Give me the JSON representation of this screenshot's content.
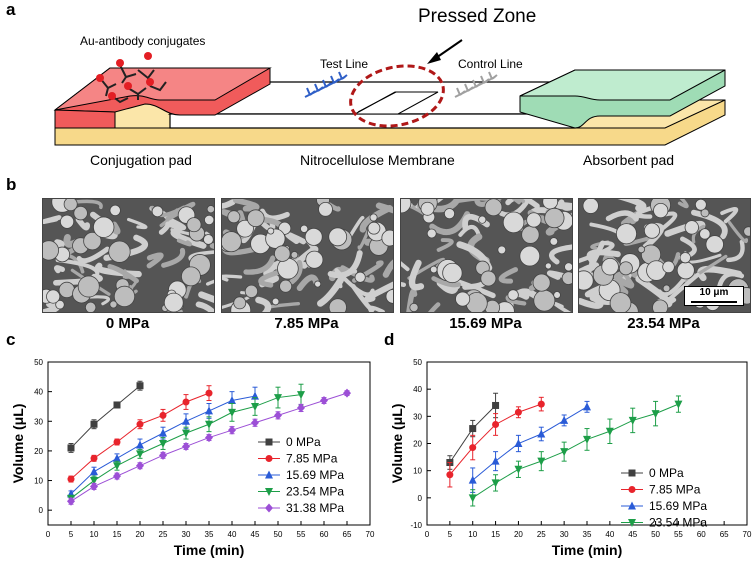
{
  "panels": {
    "a": "a",
    "b": "b",
    "c": "c",
    "d": "d"
  },
  "schematic": {
    "pressed_zone": "Pressed Zone",
    "au_antibody": "Au-antibody conjugates",
    "test_line": "Test Line",
    "control_line": "Control Line",
    "conjugation_pad": "Conjugation pad",
    "nitrocellulose": "Nitrocellulose Membrane",
    "absorbent_pad": "Absorbent pad",
    "colors": {
      "conjugation": "#f26b6b",
      "absorbent": "#a8e3bf",
      "base": "#f7d98a",
      "pressed": "#b01818",
      "test": "#2f5fc7",
      "control": "#a0a0a0"
    }
  },
  "sem": {
    "labels": [
      "0 MPa",
      "7.85 MPa",
      "15.69 MPa",
      "23.54 MPa"
    ],
    "scale_bar": "10 μm"
  },
  "chart_data": [
    {
      "type": "line",
      "panel": "c",
      "xlabel": "Time (min)",
      "ylabel": "Volume (μL)",
      "xlim": [
        0,
        70
      ],
      "ylim": [
        -5,
        50
      ],
      "xticks": [
        0,
        5,
        10,
        15,
        20,
        25,
        30,
        35,
        40,
        45,
        50,
        55,
        60,
        65,
        70
      ],
      "yticks": [
        0,
        10,
        20,
        30,
        40,
        50
      ],
      "legend_position": "bottom-right",
      "series": [
        {
          "name": "0 MPa",
          "color": "#404040",
          "marker": "square",
          "x": [
            5,
            10,
            15,
            20
          ],
          "y": [
            21,
            29,
            35.5,
            42
          ],
          "err": [
            1.5,
            1.5,
            1,
            1.5
          ]
        },
        {
          "name": "7.85 MPa",
          "color": "#e8242c",
          "marker": "circle",
          "x": [
            5,
            10,
            15,
            20,
            25,
            30,
            35
          ],
          "y": [
            10.5,
            17.5,
            23,
            29,
            32,
            36.5,
            39.5
          ],
          "err": [
            1,
            1,
            1,
            1.5,
            2,
            2.5,
            2.5
          ]
        },
        {
          "name": "15.69 MPa",
          "color": "#2a5bd7",
          "marker": "triangle-up",
          "x": [
            5,
            10,
            15,
            20,
            25,
            30,
            35,
            40,
            45
          ],
          "y": [
            5.5,
            13,
            17.5,
            22,
            26,
            30,
            33.5,
            37,
            38.5
          ],
          "err": [
            1,
            1.5,
            1.5,
            2,
            2,
            2.5,
            2.5,
            3,
            3
          ]
        },
        {
          "name": "23.54 MPa",
          "color": "#1d9e48",
          "marker": "triangle-down",
          "x": [
            5,
            10,
            15,
            20,
            25,
            30,
            35,
            40,
            45,
            50,
            55
          ],
          "y": [
            4,
            10,
            15,
            19,
            22.5,
            26,
            29,
            33,
            35,
            38,
            39
          ],
          "err": [
            1,
            1.5,
            1.5,
            1.5,
            2,
            2,
            2.5,
            3,
            3,
            3.5,
            3.5
          ]
        },
        {
          "name": "31.38 MPa",
          "color": "#9c4fd6",
          "marker": "diamond",
          "x": [
            5,
            10,
            15,
            20,
            25,
            30,
            35,
            40,
            45,
            50,
            55,
            60,
            65
          ],
          "y": [
            3,
            8,
            11.5,
            15,
            18.5,
            21.5,
            24.5,
            27,
            29.5,
            32,
            34.5,
            37,
            39.5
          ],
          "err": [
            1,
            1,
            1,
            1,
            1,
            1,
            1,
            1.2,
            1.2,
            1.2,
            1.2,
            1,
            0.8
          ]
        }
      ]
    },
    {
      "type": "line",
      "panel": "d",
      "xlabel": "Time (min)",
      "ylabel": "Volume (μL)",
      "xlim": [
        0,
        70
      ],
      "ylim": [
        -10,
        50
      ],
      "xticks": [
        0,
        5,
        10,
        15,
        20,
        25,
        30,
        35,
        40,
        45,
        50,
        55,
        60,
        65,
        70
      ],
      "yticks": [
        -10,
        0,
        10,
        20,
        30,
        40,
        50
      ],
      "legend_position": "bottom-right",
      "series": [
        {
          "name": "0 MPa",
          "color": "#404040",
          "marker": "square",
          "x": [
            5,
            10,
            15
          ],
          "y": [
            13,
            25.5,
            34
          ],
          "err": [
            2.5,
            3,
            4.5
          ]
        },
        {
          "name": "7.85 MPa",
          "color": "#e8242c",
          "marker": "circle",
          "x": [
            5,
            10,
            15,
            20,
            25
          ],
          "y": [
            8.5,
            18.5,
            27,
            31.5,
            34.5
          ],
          "err": [
            4.5,
            4.5,
            4,
            2,
            2.5
          ]
        },
        {
          "name": "15.69 MPa",
          "color": "#2a5bd7",
          "marker": "triangle-up",
          "x": [
            10,
            15,
            20,
            25,
            30,
            35
          ],
          "y": [
            6.5,
            13.5,
            20,
            23.5,
            28.5,
            33.5
          ],
          "err": [
            4.5,
            3.5,
            3,
            2.5,
            2,
            2
          ]
        },
        {
          "name": "23.54 MPa",
          "color": "#1d9e48",
          "marker": "triangle-down",
          "x": [
            10,
            15,
            20,
            25,
            30,
            35,
            40,
            45,
            50,
            55
          ],
          "y": [
            0,
            5.5,
            10.5,
            13.5,
            17,
            21.5,
            24.5,
            28.5,
            31,
            34.5
          ],
          "err": [
            3,
            3,
            3,
            3.5,
            3.5,
            4,
            4.5,
            4.5,
            4.5,
            3
          ]
        }
      ]
    }
  ]
}
